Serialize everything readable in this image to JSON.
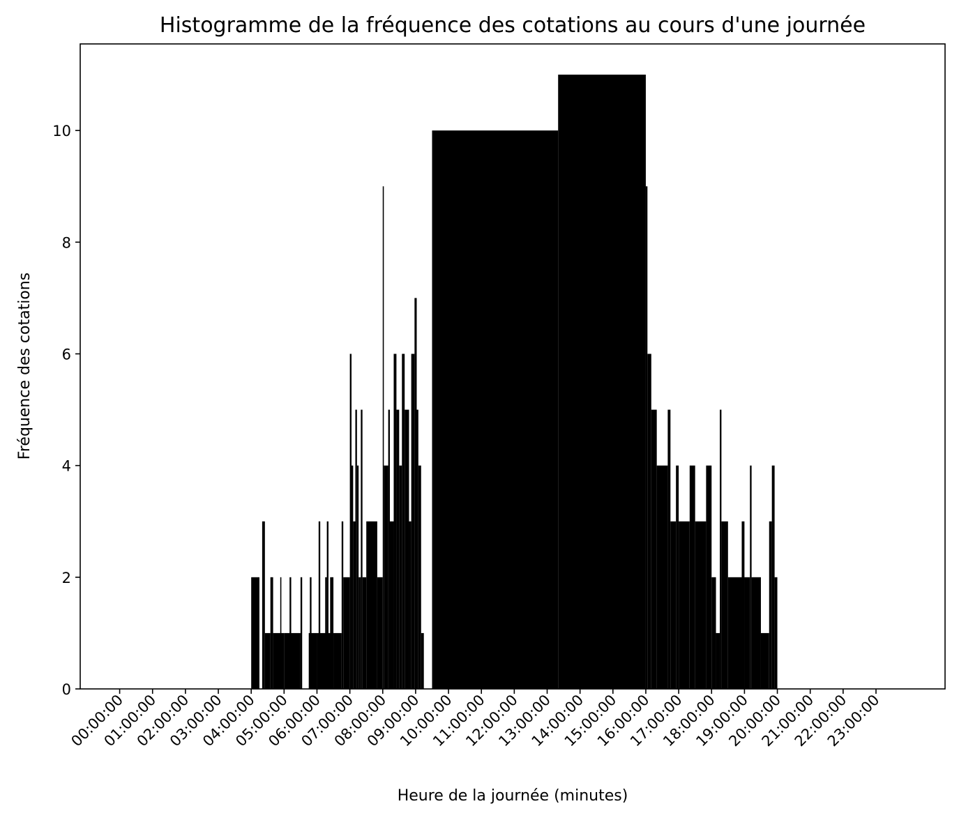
{
  "chart_data": {
    "type": "bar",
    "title": "Histogramme de la fréquence des cotations au cours d'une journée",
    "xlabel": "Heure de la journée (minutes)",
    "ylabel": "Fréquence des cotations",
    "ylim": [
      0,
      11.55
    ],
    "yticks": [
      0,
      2,
      4,
      6,
      8,
      10
    ],
    "xlim_hours": [
      -1.2,
      25.1
    ],
    "xtick_hours": [
      0,
      1,
      2,
      3,
      4,
      5,
      6,
      7,
      8,
      9,
      10,
      11,
      12,
      13,
      14,
      15,
      16,
      17,
      18,
      19,
      20,
      21,
      22,
      23
    ],
    "xtick_labels": [
      "00:00:00",
      "01:00:00",
      "02:00:00",
      "03:00:00",
      "04:00:00",
      "05:00:00",
      "06:00:00",
      "07:00:00",
      "08:00:00",
      "09:00:00",
      "10:00:00",
      "11:00:00",
      "12:00:00",
      "13:00:00",
      "14:00:00",
      "15:00:00",
      "16:00:00",
      "17:00:00",
      "18:00:00",
      "19:00:00",
      "20:00:00",
      "21:00:00",
      "22:00:00",
      "23:00:00"
    ],
    "grid": false,
    "bar_color": "#000000",
    "bars": [
      {
        "start": "04:00:00",
        "end": "04:15:00",
        "value": 2
      },
      {
        "start": "04:15:00",
        "end": "04:20:00",
        "value": 0
      },
      {
        "start": "04:20:00",
        "end": "04:25:00",
        "value": 3
      },
      {
        "start": "04:25:00",
        "end": "04:35:00",
        "value": 1
      },
      {
        "start": "04:35:00",
        "end": "04:40:00",
        "value": 2
      },
      {
        "start": "04:40:00",
        "end": "05:00:00",
        "value": 1
      },
      {
        "start": "04:53:00",
        "end": "04:55:00",
        "value": 2
      },
      {
        "start": "05:00:00",
        "end": "05:30:00",
        "value": 1
      },
      {
        "start": "05:10:00",
        "end": "05:13:00",
        "value": 2
      },
      {
        "start": "05:30:00",
        "end": "05:33:00",
        "value": 2
      },
      {
        "start": "05:35:00",
        "end": "05:45:00",
        "value": 0
      },
      {
        "start": "05:45:00",
        "end": "06:00:00",
        "value": 1
      },
      {
        "start": "05:47:00",
        "end": "05:50:00",
        "value": 2
      },
      {
        "start": "06:00:00",
        "end": "06:30:00",
        "value": 1
      },
      {
        "start": "06:03:00",
        "end": "06:06:00",
        "value": 3
      },
      {
        "start": "06:15:00",
        "end": "06:18:00",
        "value": 2
      },
      {
        "start": "06:18:00",
        "end": "06:21:00",
        "value": 3
      },
      {
        "start": "06:24:00",
        "end": "06:30:00",
        "value": 2
      },
      {
        "start": "06:30:00",
        "end": "06:45:00",
        "value": 1
      },
      {
        "start": "06:45:00",
        "end": "06:48:00",
        "value": 3
      },
      {
        "start": "06:48:00",
        "end": "07:00:00",
        "value": 2
      },
      {
        "start": "07:00:00",
        "end": "07:03:00",
        "value": 6
      },
      {
        "start": "07:03:00",
        "end": "07:06:00",
        "value": 4
      },
      {
        "start": "07:06:00",
        "end": "07:10:00",
        "value": 3
      },
      {
        "start": "07:10:00",
        "end": "07:13:00",
        "value": 5
      },
      {
        "start": "07:13:00",
        "end": "07:16:00",
        "value": 4
      },
      {
        "start": "07:16:00",
        "end": "07:20:00",
        "value": 2
      },
      {
        "start": "07:20:00",
        "end": "07:23:00",
        "value": 5
      },
      {
        "start": "07:23:00",
        "end": "07:30:00",
        "value": 2
      },
      {
        "start": "07:30:00",
        "end": "07:50:00",
        "value": 3
      },
      {
        "start": "07:50:00",
        "end": "08:00:00",
        "value": 2
      },
      {
        "start": "08:00:00",
        "end": "08:02:00",
        "value": 9
      },
      {
        "start": "08:02:00",
        "end": "08:10:00",
        "value": 4
      },
      {
        "start": "08:10:00",
        "end": "08:13:00",
        "value": 5
      },
      {
        "start": "08:13:00",
        "end": "08:20:00",
        "value": 3
      },
      {
        "start": "08:20:00",
        "end": "08:25:00",
        "value": 6
      },
      {
        "start": "08:25:00",
        "end": "08:30:00",
        "value": 5
      },
      {
        "start": "08:30:00",
        "end": "08:35:00",
        "value": 4
      },
      {
        "start": "08:35:00",
        "end": "08:40:00",
        "value": 6
      },
      {
        "start": "08:40:00",
        "end": "08:48:00",
        "value": 5
      },
      {
        "start": "08:48:00",
        "end": "08:52:00",
        "value": 3
      },
      {
        "start": "08:52:00",
        "end": "08:58:00",
        "value": 6
      },
      {
        "start": "08:58:00",
        "end": "09:02:00",
        "value": 7
      },
      {
        "start": "09:02:00",
        "end": "09:05:00",
        "value": 5
      },
      {
        "start": "09:05:00",
        "end": "09:10:00",
        "value": 4
      },
      {
        "start": "09:10:00",
        "end": "09:15:00",
        "value": 1
      },
      {
        "start": "09:30:00",
        "end": "13:20:00",
        "value": 10
      },
      {
        "start": "13:20:00",
        "end": "16:00:00",
        "value": 11
      },
      {
        "start": "16:00:00",
        "end": "16:03:00",
        "value": 9
      },
      {
        "start": "16:03:00",
        "end": "16:10:00",
        "value": 6
      },
      {
        "start": "16:10:00",
        "end": "16:20:00",
        "value": 5
      },
      {
        "start": "16:20:00",
        "end": "16:40:00",
        "value": 4
      },
      {
        "start": "16:40:00",
        "end": "16:45:00",
        "value": 5
      },
      {
        "start": "16:45:00",
        "end": "16:55:00",
        "value": 3
      },
      {
        "start": "16:55:00",
        "end": "17:00:00",
        "value": 4
      },
      {
        "start": "17:00:00",
        "end": "17:20:00",
        "value": 3
      },
      {
        "start": "17:20:00",
        "end": "17:30:00",
        "value": 4
      },
      {
        "start": "17:30:00",
        "end": "17:50:00",
        "value": 3
      },
      {
        "start": "17:50:00",
        "end": "18:00:00",
        "value": 4
      },
      {
        "start": "18:00:00",
        "end": "18:08:00",
        "value": 2
      },
      {
        "start": "18:08:00",
        "end": "18:15:00",
        "value": 1
      },
      {
        "start": "18:15:00",
        "end": "18:18:00",
        "value": 5
      },
      {
        "start": "18:18:00",
        "end": "18:30:00",
        "value": 3
      },
      {
        "start": "18:30:00",
        "end": "19:00:00",
        "value": 2
      },
      {
        "start": "18:55:00",
        "end": "19:00:00",
        "value": 3
      },
      {
        "start": "19:00:00",
        "end": "19:10:00",
        "value": 2
      },
      {
        "start": "19:10:00",
        "end": "19:13:00",
        "value": 4
      },
      {
        "start": "19:13:00",
        "end": "19:30:00",
        "value": 2
      },
      {
        "start": "19:30:00",
        "end": "19:45:00",
        "value": 1
      },
      {
        "start": "19:45:00",
        "end": "19:50:00",
        "value": 3
      },
      {
        "start": "19:50:00",
        "end": "19:55:00",
        "value": 4
      },
      {
        "start": "19:55:00",
        "end": "20:00:00",
        "value": 2
      }
    ]
  }
}
